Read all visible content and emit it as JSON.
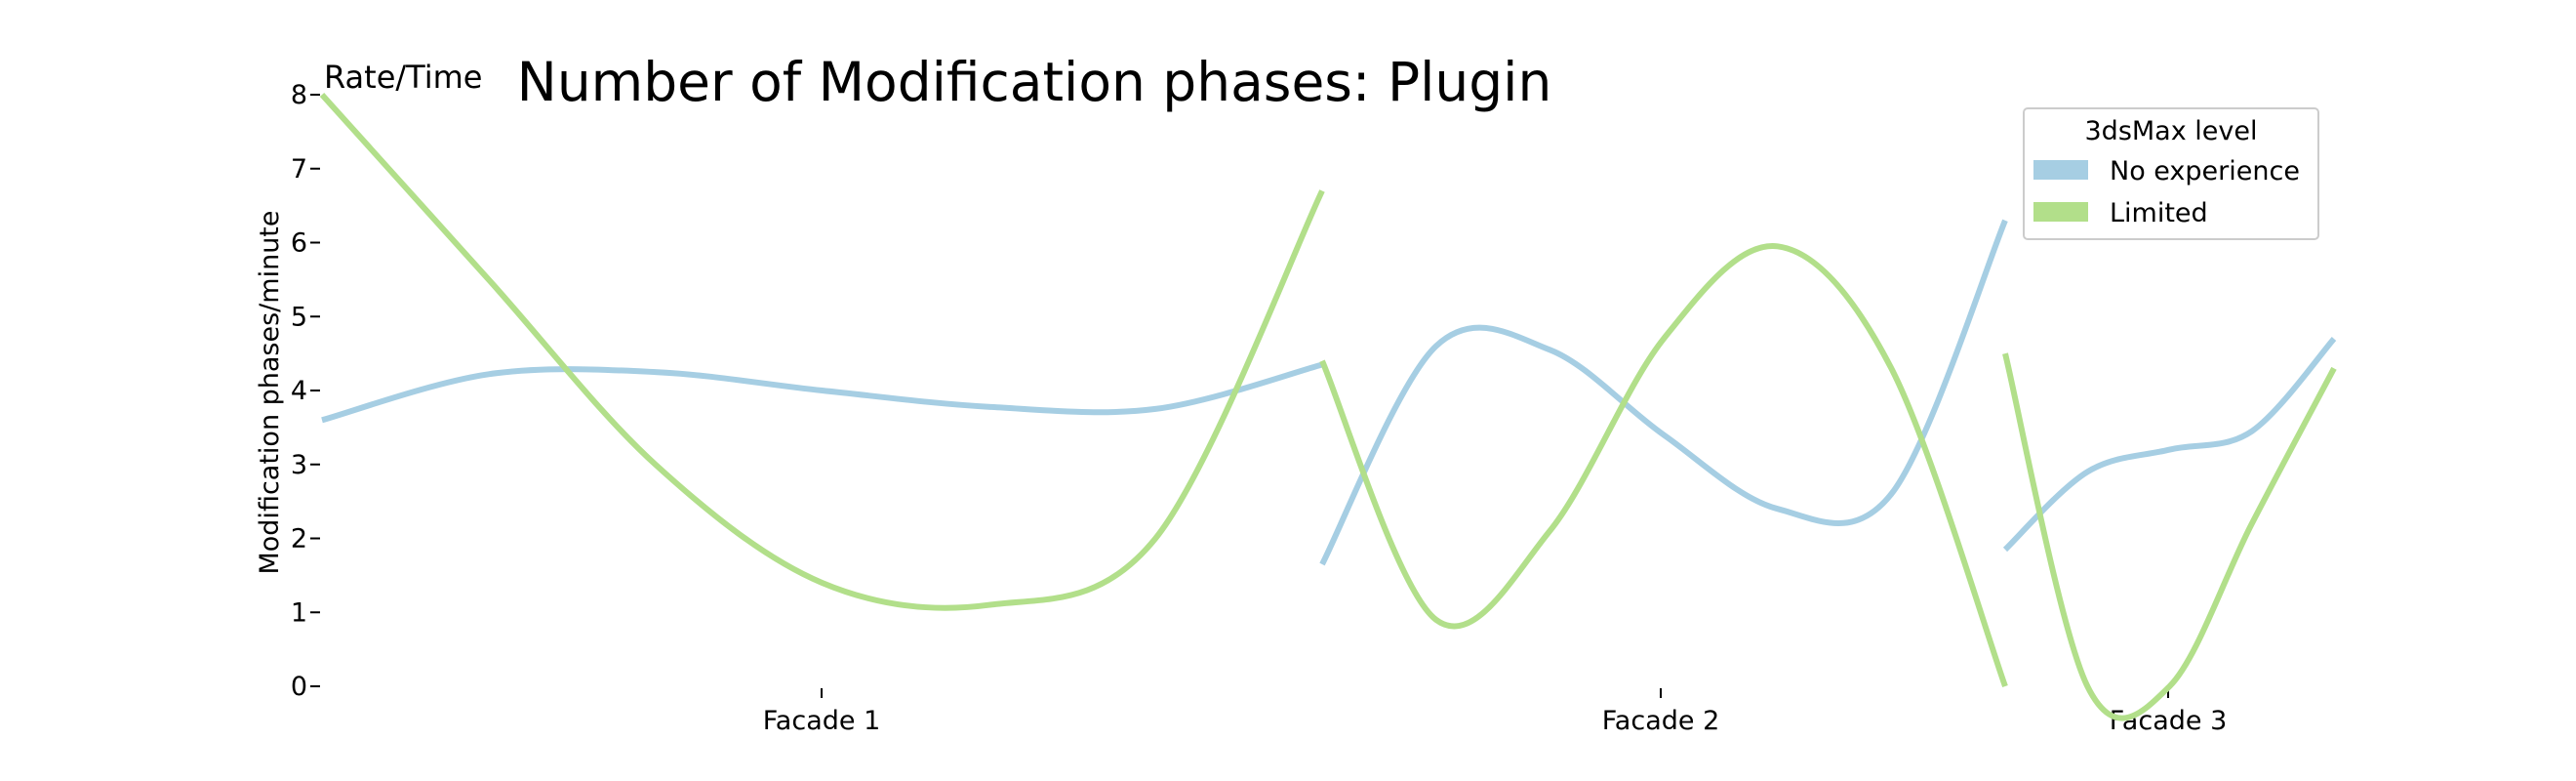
{
  "chart_data": {
    "type": "line",
    "title": "Number of Modification phases: Plugin",
    "corner_label": "Rate/Time",
    "ylabel": "Modification phases/minute",
    "xlabel": "",
    "ylim": [
      0,
      8
    ],
    "yticks": [
      "0",
      "1",
      "2",
      "3",
      "4",
      "5",
      "6",
      "7",
      "8"
    ],
    "categories": [
      "Facade 1",
      "Facade 2",
      "Facade 3"
    ],
    "grid": false,
    "legend": {
      "title": "3dsMax level",
      "placement": "top-right"
    },
    "series": [
      {
        "name": "No experience",
        "color": "#a6cee3",
        "segments": [
          {
            "category": "Facade 1",
            "values": [
              3.6,
              4.22,
              4.25,
              4.0,
              3.78,
              3.75,
              4.35
            ]
          },
          {
            "category": "Facade 2",
            "values": [
              1.65,
              4.6,
              4.55,
              3.4,
              2.4,
              2.6,
              6.3
            ]
          },
          {
            "category": "Facade 3",
            "values": [
              1.85,
              2.9,
              3.2,
              3.45,
              4.7
            ]
          }
        ]
      },
      {
        "name": "Limited",
        "color": "#b2df8a",
        "segments": [
          {
            "category": "Facade 1",
            "values": [
              8.0,
              5.5,
              3.0,
              1.4,
              1.1,
              2.0,
              6.7
            ]
          },
          {
            "category": "Facade 2",
            "values": [
              4.4,
              0.9,
              2.1,
              4.7,
              5.95,
              4.3,
              0.0
            ]
          },
          {
            "category": "Facade 3",
            "values": [
              4.5,
              0.0,
              0.0,
              2.2,
              4.3
            ]
          }
        ]
      }
    ]
  }
}
